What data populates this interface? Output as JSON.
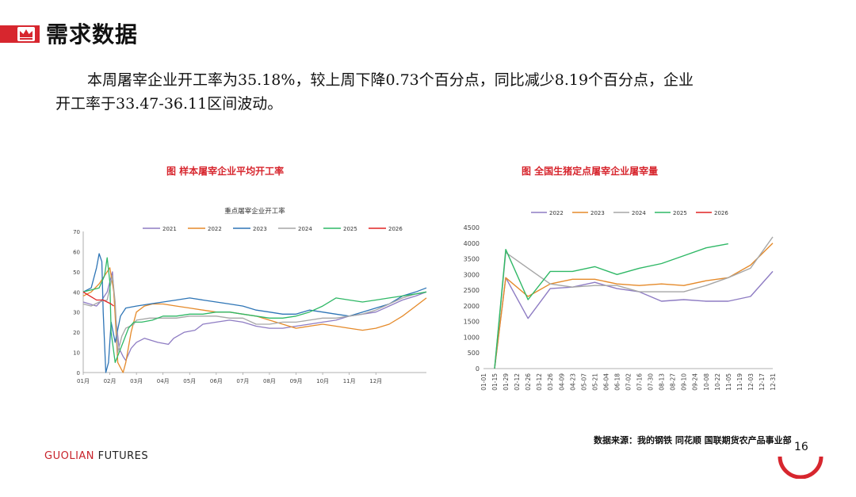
{
  "header": {
    "title": "需求数据"
  },
  "paragraph": {
    "line1": "本周屠宰企业开工率为35.18%，较上周下降0.73个百分点，同比减少8.19个百分点，企业",
    "line2": "开工率于33.47-36.11区间波动。"
  },
  "footer": {
    "brand_a": "GUOLIAN",
    "brand_b": " FUTURES",
    "page": "16"
  },
  "source": "数据来源：我的钢铁 同花顺 国联期货农产品事业部",
  "chart_data": [
    {
      "type": "line",
      "figure_title": "图 样本屠宰企业平均开工率",
      "title": "重点屠宰企业开工率",
      "ylim": [
        0,
        70
      ],
      "yticks": [
        0,
        10,
        20,
        30,
        40,
        50,
        60,
        70
      ],
      "xticks": [
        "01月",
        "02月",
        "03月",
        "04月",
        "05月",
        "06月",
        "07月",
        "08月",
        "09月",
        "10月",
        "11月",
        "12月"
      ],
      "grid": false,
      "legend": "top",
      "series": [
        {
          "name": "2021",
          "color": "#8e7cc3",
          "points": [
            [
              0,
              35
            ],
            [
              0.5,
              33
            ],
            [
              0.7,
              36
            ],
            [
              0.9,
              40
            ],
            [
              1.1,
              50
            ],
            [
              1.2,
              30
            ],
            [
              1.35,
              12
            ],
            [
              1.5,
              8
            ],
            [
              1.6,
              6
            ],
            [
              1.8,
              12
            ],
            [
              2.0,
              15
            ],
            [
              2.3,
              17
            ],
            [
              2.8,
              15
            ],
            [
              3.2,
              14
            ],
            [
              3.4,
              17
            ],
            [
              3.8,
              20
            ],
            [
              4.2,
              21
            ],
            [
              4.5,
              24
            ],
            [
              5,
              25
            ],
            [
              5.5,
              26
            ],
            [
              6,
              25
            ],
            [
              6.5,
              23
            ],
            [
              7,
              22
            ],
            [
              7.5,
              22
            ],
            [
              8,
              23
            ],
            [
              8.5,
              24
            ],
            [
              9,
              25
            ],
            [
              9.5,
              26
            ],
            [
              10,
              28
            ],
            [
              10.5,
              29
            ],
            [
              11,
              30
            ],
            [
              11.5,
              33
            ],
            [
              12,
              36
            ],
            [
              12.5,
              38
            ],
            [
              12.9,
              40
            ]
          ]
        },
        {
          "name": "2022",
          "color": "#e58a2a",
          "points": [
            [
              0,
              38
            ],
            [
              0.3,
              40
            ],
            [
              0.6,
              44
            ],
            [
              0.8,
              48
            ],
            [
              1.0,
              52
            ],
            [
              1.15,
              40
            ],
            [
              1.3,
              5
            ],
            [
              1.5,
              0
            ],
            [
              1.6,
              5
            ],
            [
              1.8,
              20
            ],
            [
              2,
              30
            ],
            [
              2.3,
              33
            ],
            [
              2.6,
              34
            ],
            [
              3,
              34
            ],
            [
              3.5,
              33
            ],
            [
              4,
              32
            ],
            [
              4.5,
              31
            ],
            [
              5,
              30
            ],
            [
              5.5,
              30
            ],
            [
              6,
              29
            ],
            [
              6.5,
              28
            ],
            [
              7,
              26
            ],
            [
              7.5,
              24
            ],
            [
              8,
              22
            ],
            [
              8.5,
              23
            ],
            [
              9,
              24
            ],
            [
              9.5,
              23
            ],
            [
              10,
              22
            ],
            [
              10.5,
              21
            ],
            [
              11,
              22
            ],
            [
              11.5,
              24
            ],
            [
              12,
              28
            ],
            [
              12.5,
              33
            ],
            [
              12.9,
              37
            ]
          ]
        },
        {
          "name": "2023",
          "color": "#2e75b6",
          "points": [
            [
              0,
              40
            ],
            [
              0.3,
              42
            ],
            [
              0.5,
              52
            ],
            [
              0.6,
              59
            ],
            [
              0.7,
              55
            ],
            [
              0.75,
              30
            ],
            [
              0.85,
              0
            ],
            [
              0.95,
              5
            ],
            [
              1.05,
              25
            ],
            [
              1.2,
              15
            ],
            [
              1.4,
              28
            ],
            [
              1.6,
              32
            ],
            [
              2,
              33
            ],
            [
              2.5,
              34
            ],
            [
              3,
              35
            ],
            [
              3.5,
              36
            ],
            [
              4,
              37
            ],
            [
              4.5,
              36
            ],
            [
              5,
              35
            ],
            [
              5.5,
              34
            ],
            [
              6,
              33
            ],
            [
              6.5,
              31
            ],
            [
              7,
              30
            ],
            [
              7.5,
              29
            ],
            [
              8,
              29
            ],
            [
              8.5,
              31
            ],
            [
              9,
              30
            ],
            [
              9.5,
              29
            ],
            [
              10,
              28
            ],
            [
              10.5,
              30
            ],
            [
              11,
              32
            ],
            [
              11.5,
              34
            ],
            [
              12,
              38
            ],
            [
              12.5,
              40
            ],
            [
              12.9,
              42
            ]
          ]
        },
        {
          "name": "2024",
          "color": "#a6a6a6",
          "points": [
            [
              0,
              34
            ],
            [
              0.3,
              33
            ],
            [
              0.6,
              35
            ],
            [
              0.9,
              36
            ],
            [
              1.1,
              48
            ],
            [
              1.2,
              35
            ],
            [
              1.3,
              10
            ],
            [
              1.45,
              18
            ],
            [
              1.6,
              22
            ],
            [
              1.9,
              24
            ],
            [
              2,
              26
            ],
            [
              2.5,
              27
            ],
            [
              3,
              27
            ],
            [
              3.5,
              27
            ],
            [
              4,
              28
            ],
            [
              4.5,
              28
            ],
            [
              5,
              28
            ],
            [
              5.5,
              27
            ],
            [
              6,
              27
            ],
            [
              6.5,
              24
            ],
            [
              7,
              24
            ],
            [
              7.5,
              25
            ],
            [
              8,
              25
            ],
            [
              8.5,
              26
            ],
            [
              9,
              27
            ],
            [
              9.5,
              27
            ],
            [
              10,
              28
            ],
            [
              10.5,
              29
            ],
            [
              11,
              31
            ],
            [
              11.5,
              34
            ],
            [
              12,
              37
            ],
            [
              12.5,
              39
            ],
            [
              12.9,
              40
            ]
          ]
        },
        {
          "name": "2025",
          "color": "#2fb866",
          "points": [
            [
              0,
              40
            ],
            [
              0.3,
              41
            ],
            [
              0.6,
              42
            ],
            [
              0.8,
              48
            ],
            [
              0.9,
              57
            ],
            [
              1.0,
              45
            ],
            [
              1.05,
              20
            ],
            [
              1.2,
              5
            ],
            [
              1.35,
              10
            ],
            [
              1.5,
              15
            ],
            [
              1.7,
              22
            ],
            [
              1.9,
              25
            ],
            [
              2.2,
              25
            ],
            [
              2.6,
              26
            ],
            [
              3,
              28
            ],
            [
              3.5,
              28
            ],
            [
              4,
              29
            ],
            [
              4.5,
              29
            ],
            [
              5,
              30
            ],
            [
              5.5,
              30
            ],
            [
              6,
              29
            ],
            [
              6.5,
              28
            ],
            [
              7,
              27
            ],
            [
              7.5,
              27
            ],
            [
              8,
              28
            ],
            [
              8.5,
              30
            ],
            [
              9,
              33
            ],
            [
              9.5,
              37
            ],
            [
              10,
              36
            ],
            [
              10.5,
              35
            ],
            [
              11,
              36
            ],
            [
              11.5,
              37
            ],
            [
              12,
              38
            ],
            [
              12.5,
              39
            ],
            [
              12.9,
              40
            ]
          ]
        },
        {
          "name": "2026",
          "color": "#e02424",
          "points": [
            [
              0,
              40
            ],
            [
              0.25,
              38
            ],
            [
              0.5,
              36
            ],
            [
              0.75,
              36
            ],
            [
              0.9,
              35
            ],
            [
              1.05,
              34
            ],
            [
              1.15,
              33
            ]
          ]
        }
      ]
    },
    {
      "type": "line",
      "figure_title": "图 全国生猪定点屠宰企业屠宰量",
      "title": "",
      "ylim": [
        0,
        4500
      ],
      "yticks": [
        0,
        500,
        1000,
        1500,
        2000,
        2500,
        3000,
        3500,
        4000,
        4500
      ],
      "categories": [
        "01-01",
        "01-15",
        "01-29",
        "02-12",
        "02-26",
        "03-12",
        "03-26",
        "04-09",
        "04-23",
        "05-07",
        "05-21",
        "06-04",
        "06-18",
        "07-02",
        "07-16",
        "07-30",
        "08-13",
        "08-27",
        "09-10",
        "09-24",
        "10-08",
        "10-22",
        "11-05",
        "11-19",
        "12-03",
        "12-17",
        "12-31"
      ],
      "grid": false,
      "legend": "top",
      "series": [
        {
          "name": "2022",
          "color": "#8e7cc3",
          "points": [
            [
              1,
              0
            ],
            [
              2,
              2900
            ],
            [
              4,
              1600
            ],
            [
              6,
              2550
            ],
            [
              8,
              2600
            ],
            [
              10,
              2750
            ],
            [
              12,
              2550
            ],
            [
              14,
              2450
            ],
            [
              16,
              2150
            ],
            [
              18,
              2200
            ],
            [
              20,
              2150
            ],
            [
              22,
              2150
            ],
            [
              24,
              2300
            ],
            [
              26,
              3100
            ]
          ]
        },
        {
          "name": "2023",
          "color": "#e58a2a",
          "points": [
            [
              1,
              0
            ],
            [
              2,
              2900
            ],
            [
              4,
              2300
            ],
            [
              6,
              2700
            ],
            [
              8,
              2850
            ],
            [
              10,
              2850
            ],
            [
              12,
              2700
            ],
            [
              14,
              2650
            ],
            [
              16,
              2700
            ],
            [
              18,
              2650
            ],
            [
              20,
              2800
            ],
            [
              22,
              2900
            ],
            [
              24,
              3300
            ],
            [
              26,
              4000
            ]
          ]
        },
        {
          "name": "2024",
          "color": "#a6a6a6",
          "points": [
            [
              1,
              0
            ],
            [
              2,
              3700
            ],
            [
              4,
              3200
            ],
            [
              6,
              2700
            ],
            [
              8,
              2600
            ],
            [
              10,
              2650
            ],
            [
              12,
              2650
            ],
            [
              14,
              2450
            ],
            [
              16,
              2450
            ],
            [
              18,
              2450
            ],
            [
              20,
              2650
            ],
            [
              22,
              2900
            ],
            [
              24,
              3200
            ],
            [
              26,
              4200
            ]
          ]
        },
        {
          "name": "2025",
          "color": "#2fb866",
          "points": [
            [
              1,
              0
            ],
            [
              2,
              3800
            ],
            [
              4,
              2200
            ],
            [
              6,
              3100
            ],
            [
              8,
              3100
            ],
            [
              10,
              3250
            ],
            [
              12,
              3000
            ],
            [
              14,
              3200
            ],
            [
              16,
              3350
            ],
            [
              18,
              3600
            ],
            [
              20,
              3850
            ],
            [
              22,
              3980
            ]
          ]
        },
        {
          "name": "2026",
          "color": "#e02424",
          "points": []
        }
      ]
    }
  ]
}
